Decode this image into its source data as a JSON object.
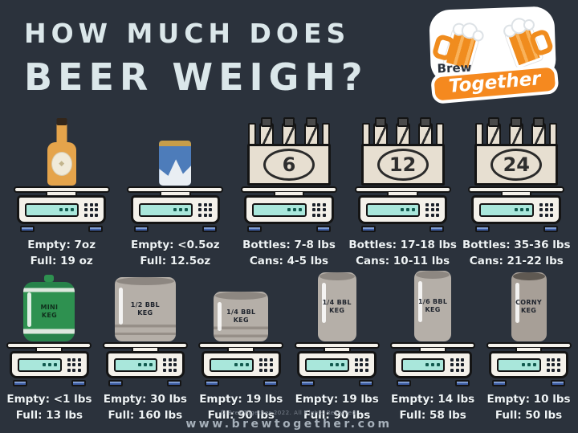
{
  "header": {
    "title_line1": "HOW MUCH DOES",
    "title_line2": "BEER WEIGH?"
  },
  "logo": {
    "brew": "Brew",
    "together": "Together"
  },
  "items_top": [
    {
      "id": "bottle",
      "graphic": "bottle",
      "icon": "beer-bottle-icon",
      "line1": "Empty: 7oz",
      "line2": "Full: 19 oz"
    },
    {
      "id": "can",
      "graphic": "can",
      "icon": "beer-can-icon",
      "line1": "Empty: <0.5oz",
      "line2": "Full: 12.5oz"
    },
    {
      "id": "six-pack",
      "graphic": "pack",
      "count": "6",
      "icon": "six-pack-icon",
      "line1": "Bottles: 7-8 lbs",
      "line2": "Cans: 4-5 lbs"
    },
    {
      "id": "twelve-pack",
      "graphic": "pack",
      "count": "12",
      "icon": "twelve-pack-icon",
      "line1": "Bottles: 17-18 lbs",
      "line2": "Cans: 10-11 lbs"
    },
    {
      "id": "twenty-four-pack",
      "graphic": "pack",
      "count": "24",
      "icon": "twenty-four-pack-icon",
      "line1": "Bottles: 35-36 lbs",
      "line2": "Cans: 21-22 lbs"
    }
  ],
  "items_bottom": [
    {
      "id": "mini-keg",
      "graphic": "keg",
      "variant": "keg-mini",
      "keg_label": "MINI\nKEG",
      "icon": "mini-keg-icon",
      "line1": "Empty: <1 lbs",
      "line2": "Full: 13 lbs"
    },
    {
      "id": "half-bbl-keg",
      "graphic": "keg",
      "variant": "keg-half",
      "keg_label": "1/2 BBL\nKEG",
      "icon": "half-bbl-keg-icon",
      "line1": "Empty: 30 lbs",
      "line2": "Full: 160 lbs"
    },
    {
      "id": "quarter-bbl-keg",
      "graphic": "keg",
      "variant": "keg-quarter",
      "keg_label": "1/4 BBL\nKEG",
      "icon": "quarter-bbl-keg-icon",
      "line1": "Empty: 19 lbs",
      "line2": "Full: 90 lbs"
    },
    {
      "id": "slim-quarter-bbl-keg",
      "graphic": "keg",
      "variant": "keg-quarter-slim",
      "keg_label": "1/4 BBL\nKEG",
      "icon": "slim-quarter-bbl-keg-icon",
      "line1": "Empty: 19 lbs",
      "line2": "Full: 90 lbs"
    },
    {
      "id": "sixth-bbl-keg",
      "graphic": "keg",
      "variant": "keg-sixth",
      "keg_label": "1/6 BBL\nKEG",
      "icon": "sixth-bbl-keg-icon",
      "line1": "Empty: 14 lbs",
      "line2": "Full: 58 lbs"
    },
    {
      "id": "corny-keg",
      "graphic": "keg",
      "variant": "keg-corny",
      "keg_label": "CORNY\nKEG",
      "icon": "corny-keg-icon",
      "line1": "Empty: 10 lbs",
      "line2": "Full: 50 lbs"
    }
  ],
  "footer": {
    "copyright": "© BrewTogether 2022. All Rights Reserved.",
    "website": "www.brewtogether.com"
  },
  "colors": {
    "background": "#2b323c",
    "title": "#dbe7ea",
    "label_text": "#eef3f5",
    "accent_orange": "#f5891f",
    "scale_body": "#f4f1ea",
    "scale_display": "#a9e7db",
    "scale_feet": "#3f5fa5",
    "bottle_amber": "#e5a44b",
    "can_blue": "#4d7cba",
    "pack_cream": "#e7dfd1",
    "keg_gray": "#b5afa8",
    "mini_keg_green": "#2e9150"
  }
}
